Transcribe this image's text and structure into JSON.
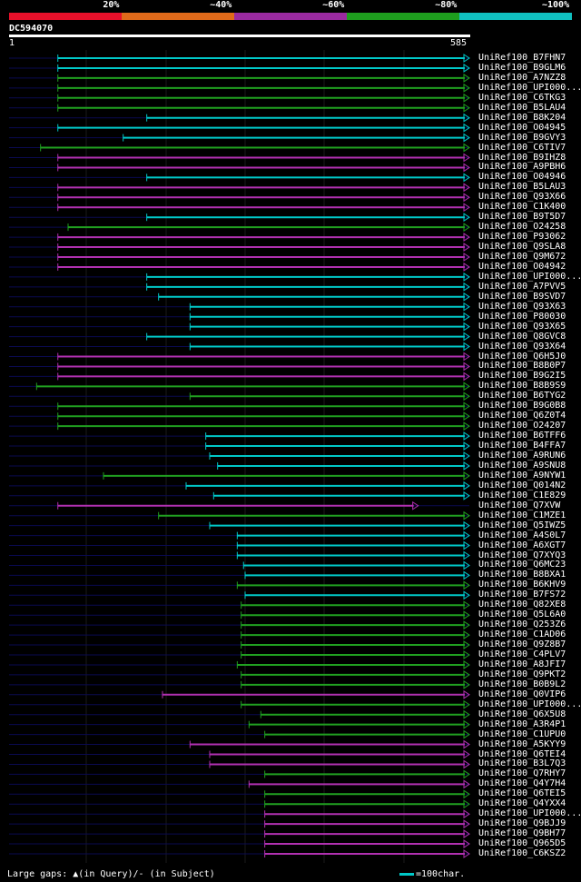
{
  "legend": {
    "segments": [
      {
        "label": "20%",
        "color": "#e8102a"
      },
      {
        "label": "~40%",
        "color": "#e06a1a"
      },
      {
        "label": "~60%",
        "color": "#9a2aa0"
      },
      {
        "label": "~80%",
        "color": "#1e9e1e"
      },
      {
        "label": "~100%",
        "color": "#10c0c0"
      }
    ]
  },
  "query": {
    "id": "DC594070",
    "start_label": "1",
    "end_label": "585",
    "length": 585
  },
  "colors": {
    "cyan": "#00c8c8",
    "green": "#20a020",
    "magenta": "#b030b0",
    "guide": "#0a0a50",
    "grid": "#1a1a1a"
  },
  "chart_data": {
    "type": "alignment-overview",
    "query_length": 585,
    "hits": [
      {
        "label": "UniRef100_B7FHN7",
        "color": "cyan",
        "start": 62,
        "end": 585
      },
      {
        "label": "UniRef100_B9GLM6",
        "color": "cyan",
        "start": 62,
        "end": 585
      },
      {
        "label": "UniRef100_A7NZZ8",
        "color": "green",
        "start": 62,
        "end": 585
      },
      {
        "label": "UniRef100_UPI000...",
        "color": "green",
        "start": 62,
        "end": 585
      },
      {
        "label": "UniRef100_C6TKG3",
        "color": "green",
        "start": 62,
        "end": 585
      },
      {
        "label": "UniRef100_B5LAU4",
        "color": "green",
        "start": 62,
        "end": 585
      },
      {
        "label": "UniRef100_B8K204",
        "color": "cyan",
        "start": 175,
        "end": 585
      },
      {
        "label": "UniRef100_O04945",
        "color": "cyan",
        "start": 62,
        "end": 585
      },
      {
        "label": "UniRef100_B9GVY3",
        "color": "cyan",
        "start": 145,
        "end": 585
      },
      {
        "label": "UniRef100_C6TIV7",
        "color": "green",
        "start": 40,
        "end": 585
      },
      {
        "label": "UniRef100_B9IHZ8",
        "color": "magenta",
        "start": 62,
        "end": 585
      },
      {
        "label": "UniRef100_A9PBH6",
        "color": "magenta",
        "start": 62,
        "end": 585
      },
      {
        "label": "UniRef100_O04946",
        "color": "cyan",
        "start": 175,
        "end": 585
      },
      {
        "label": "UniRef100_B5LAU3",
        "color": "magenta",
        "start": 62,
        "end": 585
      },
      {
        "label": "UniRef100_Q93X66",
        "color": "magenta",
        "start": 62,
        "end": 585
      },
      {
        "label": "UniRef100_C1K400",
        "color": "magenta",
        "start": 62,
        "end": 585
      },
      {
        "label": "UniRef100_B9T5D7",
        "color": "cyan",
        "start": 175,
        "end": 585
      },
      {
        "label": "UniRef100_O24258",
        "color": "green",
        "start": 75,
        "end": 585
      },
      {
        "label": "UniRef100_P93062",
        "color": "magenta",
        "start": 62,
        "end": 585
      },
      {
        "label": "UniRef100_Q9SLA8",
        "color": "magenta",
        "start": 62,
        "end": 585
      },
      {
        "label": "UniRef100_Q9M672",
        "color": "magenta",
        "start": 62,
        "end": 585
      },
      {
        "label": "UniRef100_O04942",
        "color": "magenta",
        "start": 62,
        "end": 585
      },
      {
        "label": "UniRef100_UPI000...",
        "color": "cyan",
        "start": 175,
        "end": 585
      },
      {
        "label": "UniRef100_A7PVV5",
        "color": "cyan",
        "start": 175,
        "end": 585
      },
      {
        "label": "UniRef100_B9SVD7",
        "color": "cyan",
        "start": 190,
        "end": 585
      },
      {
        "label": "UniRef100_Q93X63",
        "color": "cyan",
        "start": 230,
        "end": 585
      },
      {
        "label": "UniRef100_P80030",
        "color": "cyan",
        "start": 230,
        "end": 585
      },
      {
        "label": "UniRef100_Q93X65",
        "color": "cyan",
        "start": 230,
        "end": 585
      },
      {
        "label": "UniRef100_Q8GVC8",
        "color": "cyan",
        "start": 175,
        "end": 585
      },
      {
        "label": "UniRef100_Q93X64",
        "color": "cyan",
        "start": 230,
        "end": 585
      },
      {
        "label": "UniRef100_Q6H5J0",
        "color": "magenta",
        "start": 62,
        "end": 585
      },
      {
        "label": "UniRef100_B8B0P7",
        "color": "magenta",
        "start": 62,
        "end": 585
      },
      {
        "label": "UniRef100_B9G2I5",
        "color": "magenta",
        "start": 62,
        "end": 585
      },
      {
        "label": "UniRef100_B8B9S9",
        "color": "green",
        "start": 35,
        "end": 585
      },
      {
        "label": "UniRef100_B6TYG2",
        "color": "green",
        "start": 230,
        "end": 585
      },
      {
        "label": "UniRef100_B9G0B8",
        "color": "green",
        "start": 62,
        "end": 585
      },
      {
        "label": "UniRef100_Q6Z0T4",
        "color": "green",
        "start": 62,
        "end": 585
      },
      {
        "label": "UniRef100_O24207",
        "color": "green",
        "start": 62,
        "end": 585
      },
      {
        "label": "UniRef100_B6TFF6",
        "color": "cyan",
        "start": 250,
        "end": 585
      },
      {
        "label": "UniRef100_B4FFA7",
        "color": "cyan",
        "start": 250,
        "end": 585
      },
      {
        "label": "UniRef100_A9RUN6",
        "color": "cyan",
        "start": 255,
        "end": 585
      },
      {
        "label": "UniRef100_A9SNU8",
        "color": "cyan",
        "start": 265,
        "end": 585
      },
      {
        "label": "UniRef100_A9NYW1",
        "color": "green",
        "start": 120,
        "end": 585
      },
      {
        "label": "UniRef100_Q014N2",
        "color": "cyan",
        "start": 225,
        "end": 585
      },
      {
        "label": "UniRef100_C1E829",
        "color": "cyan",
        "start": 260,
        "end": 585
      },
      {
        "label": "UniRef100_Q7XVW",
        "color": "magenta",
        "start": 62,
        "end": 520
      },
      {
        "label": "UniRef100_C1MZE1",
        "color": "green",
        "start": 190,
        "end": 585
      },
      {
        "label": "UniRef100_Q5IWZ5",
        "color": "cyan",
        "start": 255,
        "end": 585
      },
      {
        "label": "UniRef100_A4S0L7",
        "color": "cyan",
        "start": 290,
        "end": 585
      },
      {
        "label": "UniRef100_A6XGT7",
        "color": "cyan",
        "start": 290,
        "end": 585
      },
      {
        "label": "UniRef100_Q7XYQ3",
        "color": "cyan",
        "start": 290,
        "end": 585
      },
      {
        "label": "UniRef100_Q6MC23",
        "color": "cyan",
        "start": 298,
        "end": 585
      },
      {
        "label": "UniRef100_B8BXA1",
        "color": "cyan",
        "start": 300,
        "end": 585
      },
      {
        "label": "UniRef100_B6KHV9",
        "color": "green",
        "start": 290,
        "end": 585
      },
      {
        "label": "UniRef100_B7FS72",
        "color": "cyan",
        "start": 300,
        "end": 585
      },
      {
        "label": "UniRef100_Q82XE8",
        "color": "green",
        "start": 295,
        "end": 585
      },
      {
        "label": "UniRef100_Q5L6A0",
        "color": "green",
        "start": 295,
        "end": 585
      },
      {
        "label": "UniRef100_Q253Z6",
        "color": "green",
        "start": 295,
        "end": 585
      },
      {
        "label": "UniRef100_C1AD06",
        "color": "green",
        "start": 295,
        "end": 585
      },
      {
        "label": "UniRef100_Q9Z8B7",
        "color": "green",
        "start": 295,
        "end": 585
      },
      {
        "label": "UniRef100_C4PLV7",
        "color": "green",
        "start": 295,
        "end": 585
      },
      {
        "label": "UniRef100_A8JFI7",
        "color": "green",
        "start": 290,
        "end": 585
      },
      {
        "label": "UniRef100_Q9PKT2",
        "color": "green",
        "start": 295,
        "end": 585
      },
      {
        "label": "UniRef100_B0B9L2",
        "color": "green",
        "start": 295,
        "end": 585
      },
      {
        "label": "UniRef100_Q0VIP6",
        "color": "magenta",
        "start": 195,
        "end": 585
      },
      {
        "label": "UniRef100_UPI000...",
        "color": "green",
        "start": 295,
        "end": 585
      },
      {
        "label": "UniRef100_Q6X5U8",
        "color": "green",
        "start": 320,
        "end": 585
      },
      {
        "label": "UniRef100_A3R4P1",
        "color": "green",
        "start": 305,
        "end": 585
      },
      {
        "label": "UniRef100_C1UPU0",
        "color": "green",
        "start": 325,
        "end": 585
      },
      {
        "label": "UniRef100_A5KYY9",
        "color": "magenta",
        "start": 230,
        "end": 585
      },
      {
        "label": "UniRef100_Q6TEI4",
        "color": "magenta",
        "start": 255,
        "end": 585
      },
      {
        "label": "UniRef100_B3L7Q3",
        "color": "magenta",
        "start": 255,
        "end": 585
      },
      {
        "label": "UniRef100_Q7RHY7",
        "color": "green",
        "start": 325,
        "end": 585
      },
      {
        "label": "UniRef100_Q4Y7H4",
        "color": "magenta",
        "start": 305,
        "end": 585
      },
      {
        "label": "UniRef100_Q6TEI5",
        "color": "green",
        "start": 325,
        "end": 585
      },
      {
        "label": "UniRef100_Q4YXX4",
        "color": "green",
        "start": 325,
        "end": 585
      },
      {
        "label": "UniRef100_UPI000...",
        "color": "magenta",
        "start": 325,
        "end": 585
      },
      {
        "label": "UniRef100_Q9BJJ9",
        "color": "magenta",
        "start": 325,
        "end": 585
      },
      {
        "label": "UniRef100_Q9BH77",
        "color": "magenta",
        "start": 325,
        "end": 585
      },
      {
        "label": "UniRef100_Q965D5",
        "color": "magenta",
        "start": 325,
        "end": 585
      },
      {
        "label": "UniRef100_C6KSZ2",
        "color": "magenta",
        "start": 325,
        "end": 585
      }
    ]
  },
  "footer": {
    "gaps_label": "Large gaps:",
    "gaps_query": "(in Query)",
    "gaps_subject": "/- (in Subject)",
    "scale_label": "=100char."
  }
}
